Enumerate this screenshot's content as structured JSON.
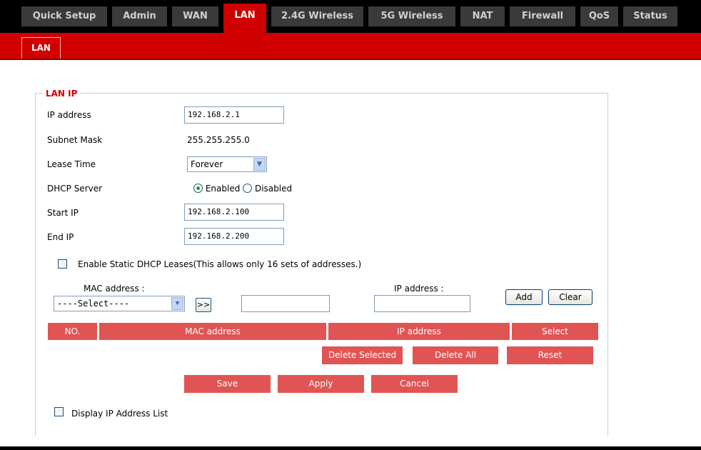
{
  "nav": {
    "tabs": [
      {
        "label": "Quick Setup"
      },
      {
        "label": "Admin"
      },
      {
        "label": "WAN"
      },
      {
        "label": "LAN"
      },
      {
        "label": "2.4G Wireless"
      },
      {
        "label": "5G Wireless"
      },
      {
        "label": "NAT"
      },
      {
        "label": "Firewall"
      },
      {
        "label": "QoS"
      },
      {
        "label": "Status"
      }
    ],
    "active_tab": "LAN",
    "subtab": "LAN"
  },
  "lan_ip": {
    "legend": "LAN IP",
    "ip_address_label": "IP address",
    "ip_address_value": "192.168.2.1",
    "subnet_mask_label": "Subnet Mask",
    "subnet_mask_value": "255.255.255.0",
    "lease_time_label": "Lease Time",
    "lease_time_value": "Forever",
    "dhcp_server_label": "DHCP Server",
    "dhcp_enabled_label": "Enabled",
    "dhcp_disabled_label": "Disabled",
    "dhcp_state": "Enabled",
    "start_ip_label": "Start IP",
    "start_ip_value": "192.168.2.100",
    "end_ip_label": "End IP",
    "end_ip_value": "192.168.2.200"
  },
  "static_dhcp": {
    "enable_label": "Enable Static DHCP Leases(This allows only 16 sets of addresses.)",
    "enabled": false,
    "mac_label": "MAC address :",
    "mac_select_value": "----Select----",
    "copy_button": ">>",
    "mac_input_value": "",
    "ip_label": "IP address :",
    "ip_input_value": "",
    "add_button": "Add",
    "clear_button": "Clear",
    "table_headers": [
      "NO.",
      "MAC address",
      "IP address",
      "Select"
    ],
    "delete_selected": "Delete Selected",
    "delete_all": "Delete All",
    "reset": "Reset"
  },
  "actions": {
    "save": "Save",
    "apply": "Apply",
    "cancel": "Cancel"
  },
  "display_list": {
    "label": "Display IP Address List",
    "checked": false
  },
  "colors": {
    "brand_red": "#d10000",
    "table_red": "#e05454",
    "nav_black": "#000000"
  }
}
